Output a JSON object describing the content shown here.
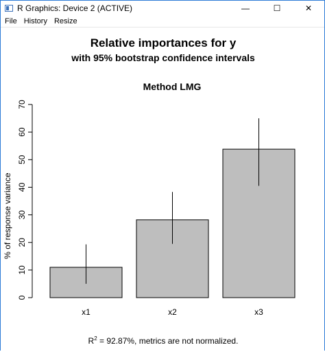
{
  "window": {
    "title": "R Graphics: Device 2 (ACTIVE)",
    "minimize_glyph": "—",
    "maximize_glyph": "☐",
    "close_glyph": "✕",
    "accent_color": "#2b7bd6"
  },
  "menu": {
    "items": [
      "File",
      "History",
      "Resize"
    ]
  },
  "plot": {
    "main_title": "Relative importances for y",
    "sub_title": "with 95% bootstrap confidence intervals",
    "panel_title": "Method LMG",
    "footnote_r": "R",
    "footnote_sup": "2",
    "footnote_rest": " = 92.87%, metrics are not normalized."
  },
  "chart_data": {
    "type": "bar",
    "title": "Method LMG",
    "xlabel": "",
    "ylabel": "% of response variance",
    "categories": [
      "x1",
      "x2",
      "x3"
    ],
    "values": [
      11,
      28.2,
      53.8
    ],
    "ci_lower": [
      5,
      19.5,
      40.5
    ],
    "ci_upper": [
      19.3,
      38.3,
      65
    ],
    "ylim": [
      0,
      70
    ],
    "yticks": [
      0,
      10,
      20,
      30,
      40,
      50,
      60,
      70
    ],
    "bar_color": "#bebebe",
    "grid": false
  }
}
